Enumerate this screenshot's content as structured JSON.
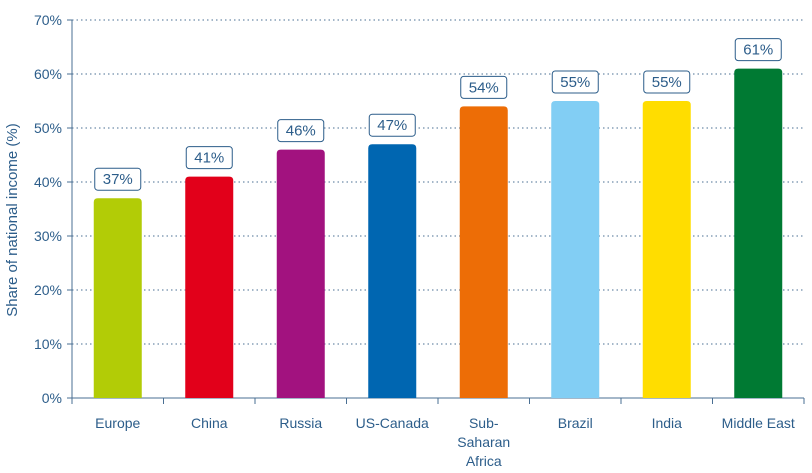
{
  "chart_data": {
    "type": "bar",
    "ylabel": "Share of national income (%)",
    "xlabel": "",
    "ylim": [
      0,
      70
    ],
    "y_ticks": [
      0,
      10,
      20,
      30,
      40,
      50,
      60,
      70
    ],
    "y_tick_labels": [
      "0%",
      "10%",
      "20%",
      "30%",
      "40%",
      "50%",
      "60%",
      "70%"
    ],
    "grid": true,
    "categories": [
      [
        "Europe"
      ],
      [
        "China"
      ],
      [
        "Russia"
      ],
      [
        "US-Canada"
      ],
      [
        "Sub-",
        "Saharan",
        "Africa"
      ],
      [
        "Brazil"
      ],
      [
        "India"
      ],
      [
        "Middle East"
      ]
    ],
    "values": [
      37,
      41,
      46,
      47,
      54,
      55,
      55,
      61
    ],
    "value_labels": [
      "37%",
      "41%",
      "46%",
      "47%",
      "54%",
      "55%",
      "55%",
      "61%"
    ],
    "colors": [
      "#b2cc06",
      "#e2001a",
      "#a2127f",
      "#0066b1",
      "#ed6d06",
      "#82cef4",
      "#ffdd00",
      "#007a33"
    ]
  }
}
